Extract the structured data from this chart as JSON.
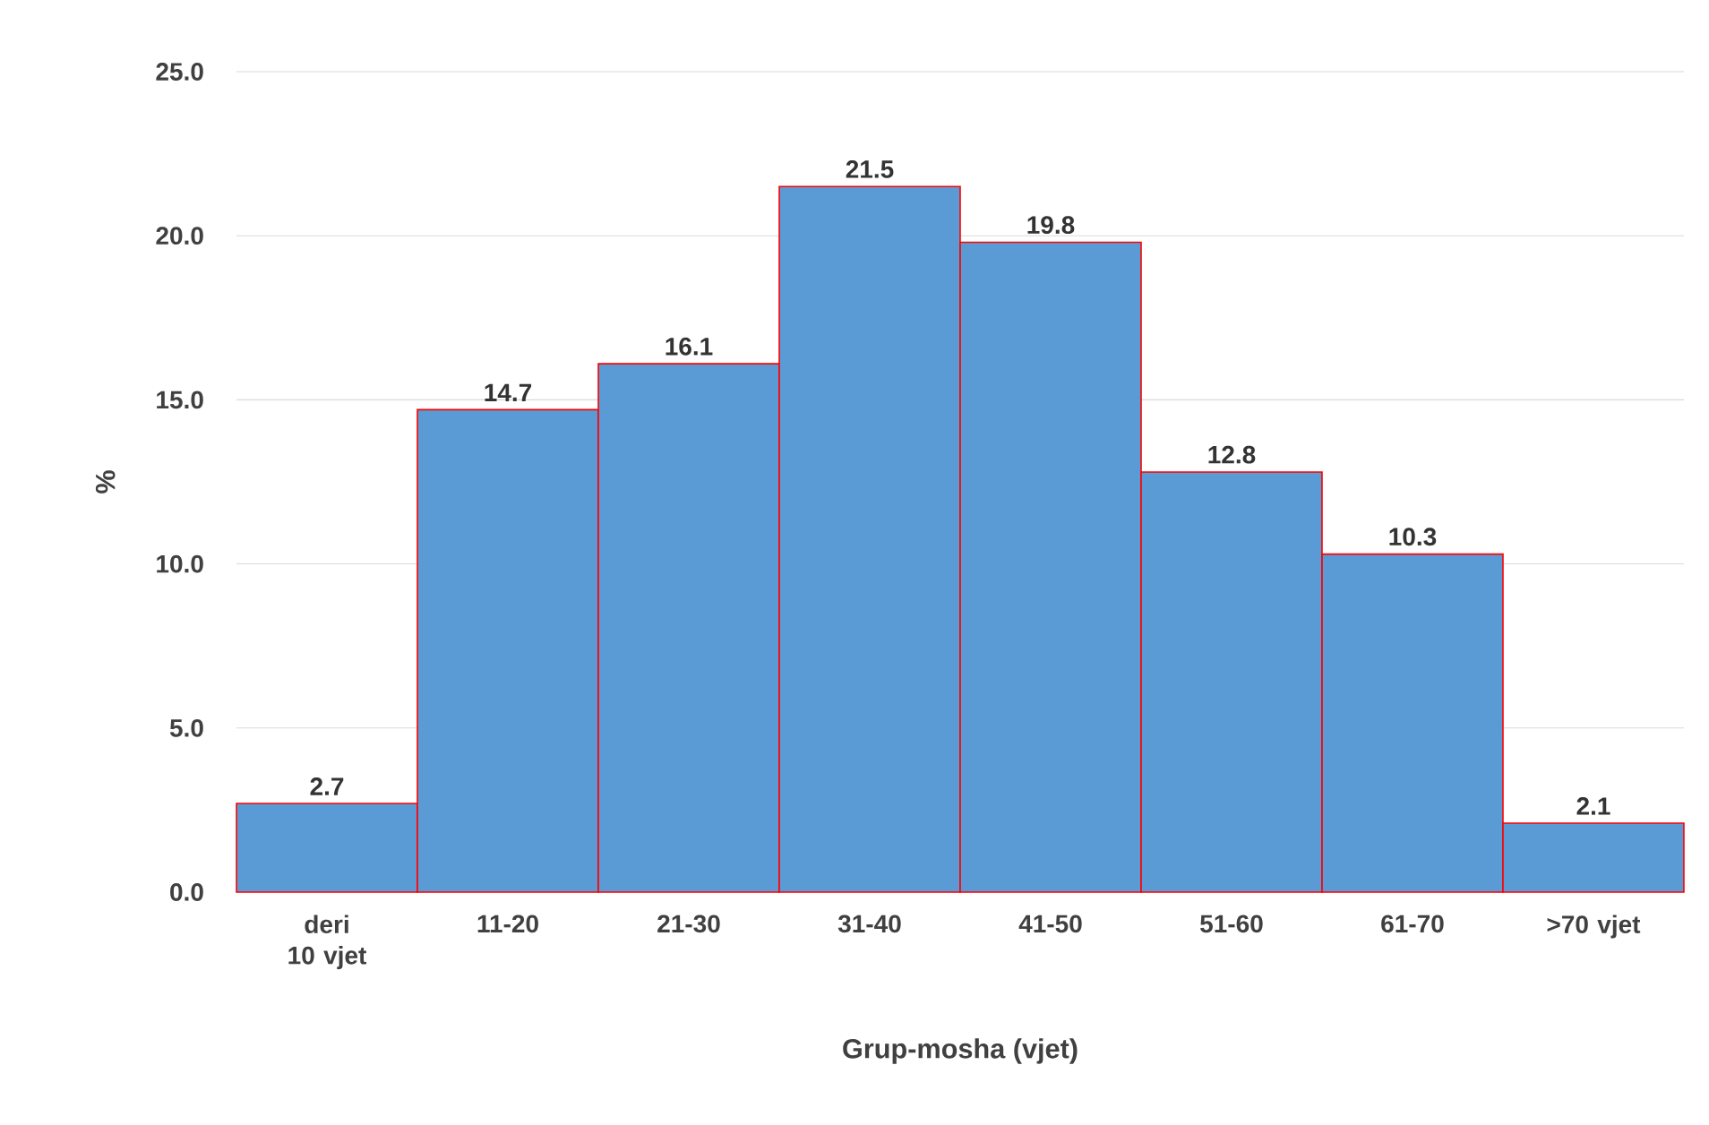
{
  "chart_data": {
    "type": "bar",
    "xlabel": "Grup-mosha (vjet)",
    "ylabel": "%",
    "categories": [
      "deri 10 vjet",
      "11-20",
      "21-30",
      "31-40",
      "41-50",
      "51-60",
      "61-70",
      ">70 vjet"
    ],
    "values": [
      2.7,
      14.7,
      16.1,
      21.5,
      19.8,
      12.8,
      10.3,
      2.1
    ],
    "color": "#5b9bd5",
    "ylim": [
      0,
      25
    ],
    "yticks": [
      {
        "value": 0,
        "label": "0.0"
      },
      {
        "value": 5,
        "label": "5.0"
      },
      {
        "value": 10,
        "label": "10.0"
      },
      {
        "value": 15,
        "label": "15.0"
      },
      {
        "value": 20,
        "label": "20.0"
      },
      {
        "value": 25,
        "label": "25.0"
      }
    ],
    "grid": "y",
    "data_labels": true
  }
}
